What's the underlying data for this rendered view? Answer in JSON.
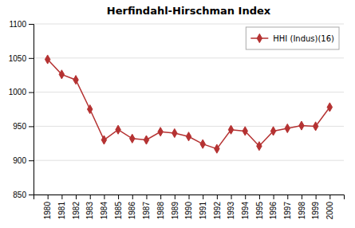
{
  "chart_data": {
    "type": "line",
    "title": "Herfindahl-Hirschman Index",
    "x": [
      1980,
      1981,
      1982,
      1983,
      1984,
      1985,
      1986,
      1987,
      1988,
      1989,
      1990,
      1991,
      1992,
      1993,
      1994,
      1995,
      1996,
      1997,
      1998,
      1999,
      2000
    ],
    "series": [
      {
        "name": "HHI (Indus)(16)",
        "color": "#b53232",
        "marker": "diamond",
        "values": [
          1048,
          1026,
          1018,
          975,
          930,
          945,
          932,
          930,
          942,
          940,
          935,
          924,
          917,
          945,
          943,
          921,
          943,
          947,
          951,
          950,
          978
        ]
      }
    ],
    "xlim": [
      1979,
      2001
    ],
    "xticks": [
      1980,
      1981,
      1982,
      1983,
      1984,
      1985,
      1986,
      1987,
      1988,
      1989,
      1990,
      1991,
      1992,
      1993,
      1994,
      1995,
      1996,
      1997,
      1998,
      1999,
      2000
    ],
    "ylim": [
      850,
      1100
    ],
    "yticks": [
      850,
      900,
      950,
      1000,
      1050,
      1100
    ],
    "grid": true,
    "legend": "upper right"
  }
}
